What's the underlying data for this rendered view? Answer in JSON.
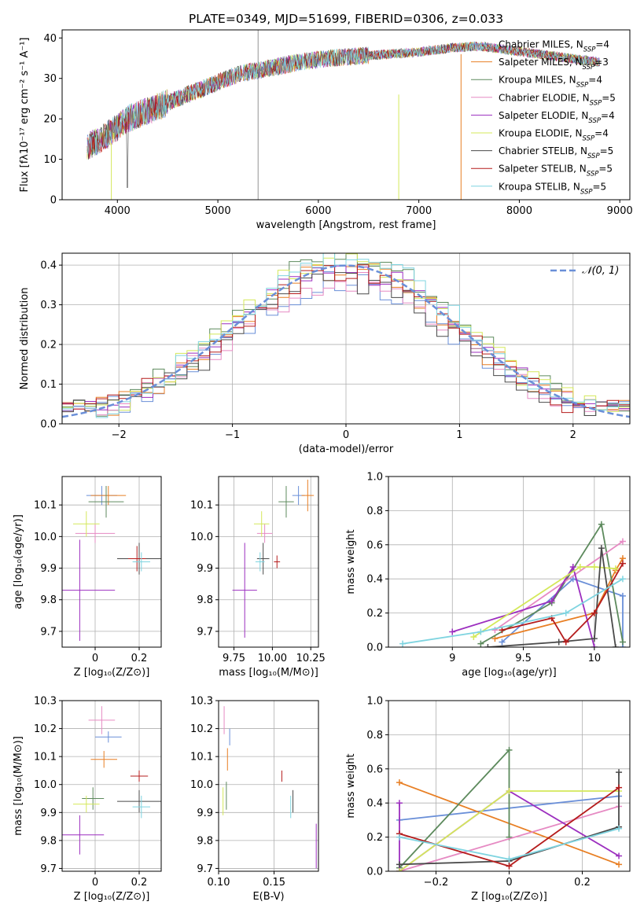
{
  "figure_title": "PLATE=0349, MJD=51699, FIBERID=0306, z=0.033",
  "colors": [
    "#6a8fd8",
    "#e87f24",
    "#5d8a5d",
    "#e68ac3",
    "#9c2fbf",
    "#d4e85a",
    "#4a4a4a",
    "#b51c1c",
    "#7fd4e0"
  ],
  "chart_data": [
    {
      "id": "spectrum",
      "type": "line",
      "title": "PLATE=0349, MJD=51699, FIBERID=0306, z=0.033",
      "xlabel": "wavelength [Angstrom, rest frame]",
      "ylabel": "Flux [fλ10⁻¹⁷ erg cm⁻² s⁻¹ A⁻¹]",
      "xlim": [
        3450,
        9100
      ],
      "ylim": [
        0,
        42
      ],
      "xticks": [
        4000,
        5000,
        6000,
        7000,
        8000,
        9000
      ],
      "yticks": [
        0,
        10,
        20,
        30,
        40
      ],
      "grid": false,
      "legend_position": "top-right",
      "continuum": [
        [
          3700,
          13
        ],
        [
          3900,
          16
        ],
        [
          4100,
          20
        ],
        [
          4300,
          22
        ],
        [
          4600,
          25
        ],
        [
          4900,
          28
        ],
        [
          5200,
          31
        ],
        [
          5500,
          32.5
        ],
        [
          5800,
          34
        ],
        [
          6100,
          35
        ],
        [
          6400,
          35.5
        ],
        [
          6700,
          36
        ],
        [
          7000,
          36.5
        ],
        [
          7300,
          37.5
        ],
        [
          7600,
          38
        ],
        [
          7900,
          37
        ],
        [
          8200,
          36
        ],
        [
          8500,
          35
        ],
        [
          8800,
          34
        ]
      ],
      "series": [
        {
          "name": "Chabrier MILES, N_SSP=4"
        },
        {
          "name": "Salpeter MILES, N_SSP=3"
        },
        {
          "name": "Kroupa MILES, N_SSP=4"
        },
        {
          "name": "Chabrier ELODIE, N_SSP=5"
        },
        {
          "name": "Salpeter ELODIE, N_SSP=4"
        },
        {
          "name": "Kroupa ELODIE, N_SSP=4"
        },
        {
          "name": "Chabrier STELIB, N_SSP=5"
        },
        {
          "name": "Salpeter STELIB, N_SSP=5"
        },
        {
          "name": "Kroupa STELIB, N_SSP=5"
        }
      ]
    },
    {
      "id": "residuals",
      "type": "line",
      "xlabel": "(data-model)/error",
      "ylabel": "Normed distribution",
      "xlim": [
        -2.5,
        2.5
      ],
      "ylim": [
        0,
        0.43
      ],
      "xticks": [
        -2,
        -1,
        0,
        1,
        2
      ],
      "yticks": [
        0.0,
        0.1,
        0.2,
        0.3,
        0.4
      ],
      "grid": true,
      "legend_position": "top-right",
      "reference_label": "𝒩(0, 1)"
    },
    {
      "id": "age_vs_Z",
      "type": "scatter",
      "xlabel": "Z [log₁₀(Z/Z⊙)]",
      "ylabel": "age  [log₁₀(age/yr)]",
      "xlim": [
        -0.15,
        0.3
      ],
      "ylim": [
        9.65,
        10.19
      ],
      "xticks": [
        0.0,
        0.2
      ],
      "yticks": [
        9.7,
        9.8,
        9.9,
        10.0,
        10.1
      ],
      "grid": true,
      "points": [
        {
          "x": 0.03,
          "y": 10.13,
          "xe": 0.07,
          "ye": 0.03
        },
        {
          "x": 0.06,
          "y": 10.13,
          "xe": 0.08,
          "ye": 0.03
        },
        {
          "x": 0.05,
          "y": 10.11,
          "xe": 0.08,
          "ye": 0.05
        },
        {
          "x": 0.0,
          "y": 10.01,
          "xe": 0.09,
          "ye": 0.03
        },
        {
          "x": -0.07,
          "y": 9.83,
          "xe": 0.16,
          "ye": 0.16
        },
        {
          "x": -0.04,
          "y": 10.04,
          "xe": 0.06,
          "ye": 0.04
        },
        {
          "x": 0.2,
          "y": 9.93,
          "xe": 0.1,
          "ye": 0.05
        },
        {
          "x": 0.19,
          "y": 9.93,
          "xe": 0.04,
          "ye": 0.04
        },
        {
          "x": 0.21,
          "y": 9.92,
          "xe": 0.04,
          "ye": 0.03
        }
      ]
    },
    {
      "id": "age_vs_mass",
      "type": "scatter",
      "xlabel": "mass [log₁₀(M/M⊙)]",
      "xlim": [
        9.65,
        10.3
      ],
      "ylim": [
        9.65,
        10.19
      ],
      "xticks": [
        9.75,
        10.0,
        10.25
      ],
      "xtick_labels": [
        "9.75",
        "10.00",
        "10.25"
      ],
      "yticks": [
        9.7,
        9.8,
        9.9,
        10.0,
        10.1
      ],
      "grid": true,
      "points": [
        {
          "x": 10.17,
          "y": 10.13,
          "xe": 0.04,
          "ye": 0.03
        },
        {
          "x": 10.23,
          "y": 10.13,
          "xe": 0.04,
          "ye": 0.05
        },
        {
          "x": 10.09,
          "y": 10.11,
          "xe": 0.05,
          "ye": 0.05
        },
        {
          "x": 9.95,
          "y": 10.01,
          "xe": 0.05,
          "ye": 0.03
        },
        {
          "x": 9.82,
          "y": 9.83,
          "xe": 0.08,
          "ye": 0.15
        },
        {
          "x": 9.93,
          "y": 10.04,
          "xe": 0.05,
          "ye": 0.04
        },
        {
          "x": 9.94,
          "y": 9.93,
          "xe": 0.04,
          "ye": 0.05
        },
        {
          "x": 10.03,
          "y": 9.92,
          "xe": 0.02,
          "ye": 0.02
        },
        {
          "x": 9.92,
          "y": 9.92,
          "xe": 0.03,
          "ye": 0.03
        }
      ]
    },
    {
      "id": "weight_vs_age",
      "type": "line",
      "xlabel": "age  [log₁₀(age/yr)]",
      "ylabel": "mass weight",
      "xlim": [
        8.55,
        10.25
      ],
      "ylim": [
        0,
        1.0
      ],
      "xticks": [
        9.0,
        9.5,
        10.0
      ],
      "yticks": [
        0.0,
        0.2,
        0.4,
        0.6,
        0.8,
        1.0
      ],
      "grid": true,
      "series": [
        {
          "x": [
            9.35,
            9.85,
            10.2,
            10.2
          ],
          "y": [
            0.03,
            0.4,
            0.3,
            0.0
          ]
        },
        {
          "x": [
            9.3,
            10.0,
            10.15,
            10.2
          ],
          "y": [
            0.05,
            0.2,
            0.45,
            0.52
          ]
        },
        {
          "x": [
            9.2,
            9.7,
            10.05,
            10.2
          ],
          "y": [
            0.02,
            0.26,
            0.72,
            0.03
          ]
        },
        {
          "x": [
            9.3,
            10.2
          ],
          "y": [
            0.1,
            0.62
          ]
        },
        {
          "x": [
            9.0,
            9.7,
            9.85,
            10.0
          ],
          "y": [
            0.09,
            0.27,
            0.47,
            0.0
          ]
        },
        {
          "x": [
            9.15,
            9.9,
            10.0,
            10.15
          ],
          "y": [
            0.06,
            0.47,
            0.47,
            0.46
          ]
        },
        {
          "x": [
            9.25,
            9.75,
            10.0,
            10.05,
            10.15
          ],
          "y": [
            0.0,
            0.03,
            0.05,
            0.58,
            0.0
          ]
        },
        {
          "x": [
            9.35,
            9.7,
            9.8,
            10.0,
            10.2
          ],
          "y": [
            0.1,
            0.17,
            0.03,
            0.2,
            0.49
          ]
        },
        {
          "x": [
            8.65,
            9.2,
            9.8,
            10.2
          ],
          "y": [
            0.02,
            0.09,
            0.2,
            0.4
          ]
        }
      ]
    },
    {
      "id": "mass_vs_Z",
      "type": "scatter",
      "xlabel": "Z [log₁₀(Z/Z⊙)]",
      "ylabel": "mass [log₁₀(M/M⊙)]",
      "xlim": [
        -0.15,
        0.3
      ],
      "ylim": [
        9.69,
        10.3
      ],
      "xticks": [
        0.0,
        0.2
      ],
      "yticks": [
        9.7,
        9.8,
        9.9,
        10.0,
        10.1,
        10.2,
        10.3
      ],
      "grid": true,
      "points": [
        {
          "x": 0.06,
          "y": 10.17,
          "xe": 0.06,
          "ye": 0.02
        },
        {
          "x": 0.04,
          "y": 10.09,
          "xe": 0.06,
          "ye": 0.03
        },
        {
          "x": -0.01,
          "y": 9.95,
          "xe": 0.05,
          "ye": 0.04
        },
        {
          "x": 0.03,
          "y": 10.23,
          "xe": 0.06,
          "ye": 0.05
        },
        {
          "x": -0.07,
          "y": 9.82,
          "xe": 0.11,
          "ye": 0.07
        },
        {
          "x": -0.04,
          "y": 9.93,
          "xe": 0.06,
          "ye": 0.03
        },
        {
          "x": 0.2,
          "y": 9.94,
          "xe": 0.1,
          "ye": 0.04
        },
        {
          "x": 0.2,
          "y": 10.03,
          "xe": 0.04,
          "ye": 0.02
        },
        {
          "x": 0.21,
          "y": 9.92,
          "xe": 0.04,
          "ye": 0.04
        }
      ]
    },
    {
      "id": "mass_vs_ebv",
      "type": "scatter",
      "xlabel": "E(B-V)",
      "xlim": [
        0.1,
        0.19
      ],
      "ylim": [
        9.69,
        10.3
      ],
      "xticks": [
        0.1,
        0.15
      ],
      "xtick_labels": [
        "0.10",
        "0.15"
      ],
      "yticks": [
        9.7,
        9.8,
        9.9,
        10.0,
        10.1,
        10.2,
        10.3
      ],
      "grid": true,
      "points": [
        {
          "x": 0.11,
          "y": 10.17,
          "xe": 0.0,
          "ye": 0.03
        },
        {
          "x": 0.108,
          "y": 10.09,
          "xe": 0.0,
          "ye": 0.04
        },
        {
          "x": 0.107,
          "y": 9.96,
          "xe": 0.0,
          "ye": 0.05
        },
        {
          "x": 0.105,
          "y": 10.23,
          "xe": 0.0,
          "ye": 0.05
        },
        {
          "x": 0.188,
          "y": 9.78,
          "xe": 0.0,
          "ye": 0.08
        },
        {
          "x": 0.104,
          "y": 9.94,
          "xe": 0.0,
          "ye": 0.05
        },
        {
          "x": 0.167,
          "y": 9.94,
          "xe": 0.0,
          "ye": 0.04
        },
        {
          "x": 0.157,
          "y": 10.03,
          "xe": 0.0,
          "ye": 0.02
        },
        {
          "x": 0.165,
          "y": 9.92,
          "xe": 0.0,
          "ye": 0.04
        }
      ]
    },
    {
      "id": "weight_vs_Z",
      "type": "line",
      "xlabel": "Z [log₁₀(Z/Z⊙)]",
      "ylabel": "mass weight",
      "xlim": [
        -0.33,
        0.33
      ],
      "ylim": [
        0,
        1.0
      ],
      "xticks": [
        -0.2,
        0.0,
        0.2
      ],
      "yticks": [
        0.0,
        0.2,
        0.4,
        0.6,
        0.8,
        1.0
      ],
      "grid": true,
      "series": [
        {
          "x": [
            -0.3,
            0.3
          ],
          "y": [
            0.3,
            0.44
          ]
        },
        {
          "x": [
            -0.3,
            0.3
          ],
          "y": [
            0.52,
            0.04
          ]
        },
        {
          "x": [
            -0.3,
            0.0,
            0.0
          ],
          "y": [
            0.02,
            0.71,
            0.2
          ]
        },
        {
          "x": [
            -0.3,
            0.3
          ],
          "y": [
            0.0,
            0.38
          ]
        },
        {
          "x": [
            -0.3,
            -0.3,
            0.0,
            0.3
          ],
          "y": [
            0.4,
            0.0,
            0.47,
            0.09
          ]
        },
        {
          "x": [
            -0.3,
            0.0,
            0.3
          ],
          "y": [
            0.0,
            0.47,
            0.47
          ]
        },
        {
          "x": [
            -0.3,
            0.0,
            0.3,
            0.3
          ],
          "y": [
            0.04,
            0.06,
            0.26,
            0.58
          ]
        },
        {
          "x": [
            -0.3,
            0.0,
            0.3
          ],
          "y": [
            0.22,
            0.03,
            0.49
          ]
        },
        {
          "x": [
            -0.3,
            0.0,
            0.3
          ],
          "y": [
            0.2,
            0.07,
            0.25
          ]
        }
      ]
    }
  ]
}
